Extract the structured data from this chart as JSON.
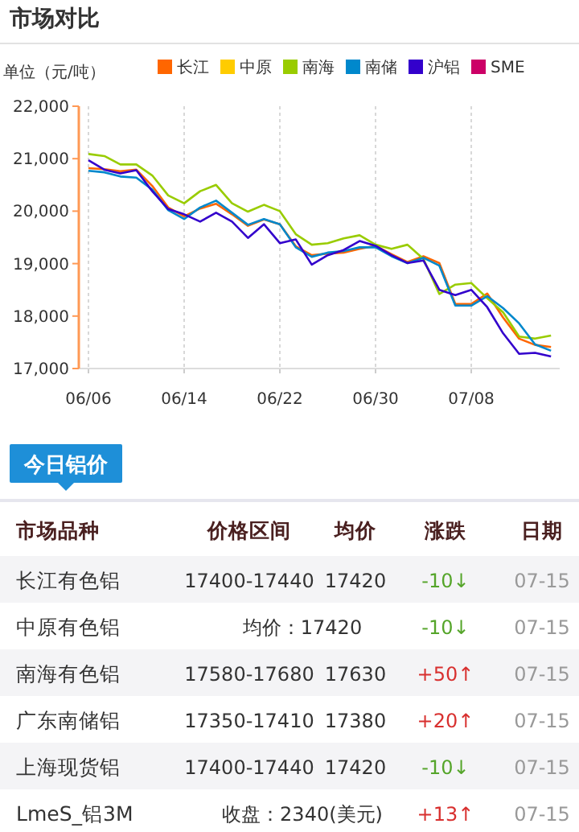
{
  "chart_data": [
    {
      "type": "line",
      "title": "市场对比",
      "ylabel": "单位（元/吨）",
      "categories": [
        "06/06",
        null,
        null,
        null,
        null,
        null,
        "06/14",
        null,
        null,
        null,
        null,
        null,
        "06/22",
        null,
        null,
        null,
        null,
        null,
        "06/30",
        null,
        null,
        null,
        null,
        null,
        "07/08",
        null,
        null,
        null,
        null,
        null
      ],
      "ylim": [
        17000,
        22000
      ],
      "yticks": [
        {
          "value": 17000,
          "label": "17,000"
        },
        {
          "value": 18000,
          "label": "18,000"
        },
        {
          "value": 19000,
          "label": "19,000"
        },
        {
          "value": 20000,
          "label": "20,000"
        },
        {
          "value": 21000,
          "label": "21,000"
        },
        {
          "value": 22000,
          "label": "22,000"
        }
      ],
      "grid": "x",
      "legend": "top",
      "marker": "none",
      "line_style": "solid",
      "series": [
        {
          "name": "长江",
          "color": "#ff6600",
          "values": [
            20820,
            20800,
            20760,
            20790,
            20480,
            20070,
            19900,
            20050,
            20140,
            19940,
            19720,
            19840,
            19750,
            19330,
            19160,
            19190,
            19210,
            19280,
            19340,
            19180,
            19030,
            19140,
            19010,
            18230,
            18230,
            18430,
            17970,
            17570,
            17450,
            17410
          ]
        },
        {
          "name": "中原",
          "color": "#ffcc00",
          "values": [
            null,
            null,
            null,
            null,
            null,
            null,
            null,
            null,
            null,
            null,
            null,
            null,
            null,
            null,
            null,
            null,
            null,
            null,
            null,
            null,
            null,
            null,
            null,
            null,
            null,
            null,
            null,
            null,
            null,
            null
          ]
        },
        {
          "name": "南海",
          "color": "#99cc00",
          "values": [
            21090,
            21050,
            20890,
            20890,
            20680,
            20300,
            20150,
            20380,
            20500,
            20150,
            19990,
            20120,
            20000,
            19560,
            19360,
            19390,
            19480,
            19540,
            19360,
            19280,
            19360,
            19090,
            18420,
            18600,
            18630,
            18340,
            18070,
            17610,
            17570,
            17630
          ]
        },
        {
          "name": "南储",
          "color": "#0088cc",
          "values": [
            20770,
            20740,
            20660,
            20640,
            20410,
            20020,
            19850,
            20070,
            20200,
            19970,
            19740,
            19850,
            19750,
            19310,
            19130,
            19210,
            19240,
            19310,
            19310,
            19140,
            19010,
            19110,
            18960,
            18200,
            18200,
            18380,
            18150,
            17860,
            17460,
            17340
          ]
        },
        {
          "name": "沪铝",
          "color": "#3300cc",
          "values": [
            20970,
            20790,
            20720,
            20780,
            20380,
            20040,
            19940,
            19800,
            19970,
            19800,
            19490,
            19750,
            19390,
            19460,
            18980,
            19160,
            19260,
            19430,
            19340,
            19160,
            19010,
            19060,
            18500,
            18400,
            18500,
            18170,
            17670,
            17280,
            17300,
            17230
          ]
        },
        {
          "name": "SME",
          "color": "#cc0066",
          "values": [
            null,
            null,
            null,
            null,
            null,
            null,
            null,
            null,
            null,
            null,
            null,
            null,
            null,
            null,
            null,
            null,
            null,
            null,
            null,
            null,
            null,
            null,
            null,
            null,
            null,
            null,
            null,
            null,
            null,
            null
          ]
        }
      ]
    },
    {
      "type": "other",
      "title": "今日铝价",
      "categories": [
        "市场品种",
        "价格区间",
        "均价",
        "涨跌",
        "日期"
      ],
      "y_categories": [
        "长江有色铝",
        "中原有色铝",
        "南海有色铝",
        "广东南储铝",
        "上海现货铝",
        "LmeS_铝3M"
      ],
      "cell_labels": [
        [
          "17400-17440",
          "17420",
          "-10↓",
          "07-15"
        ],
        [
          "均价：17420",
          null,
          "-10↓",
          "07-15"
        ],
        [
          "17580-17680",
          "17630",
          "+50↑",
          "07-15"
        ],
        [
          "17350-17410",
          "17380",
          "+20↑",
          "07-15"
        ],
        [
          "17400-17440",
          "17420",
          "-10↓",
          "07-15"
        ],
        [
          "收盘：2340(美元)",
          null,
          "+13↑",
          "07-15"
        ]
      ],
      "colors": [
        "#55a52a",
        "#55a52a",
        "#d8302f",
        "#d8302f",
        "#55a52a",
        "#d8302f"
      ]
    }
  ]
}
